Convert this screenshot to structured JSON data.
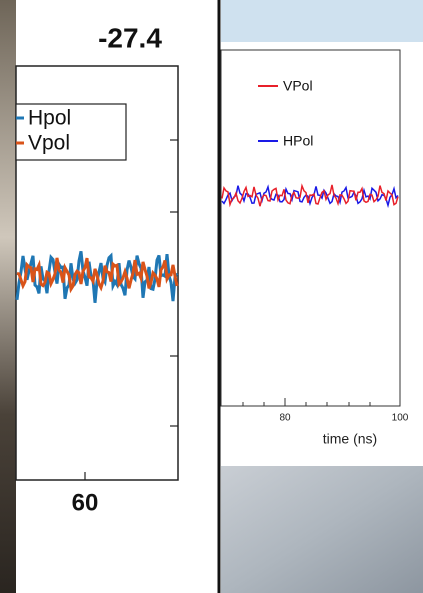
{
  "left_panel": {
    "title": "-27.4",
    "legend": [
      "Hpol",
      "Vpol"
    ],
    "x_tick": "60"
  },
  "right_panel": {
    "legend": [
      "VPol",
      "HPol"
    ],
    "x_ticks": [
      "80",
      "100"
    ],
    "x_label": "time (ns)"
  }
}
